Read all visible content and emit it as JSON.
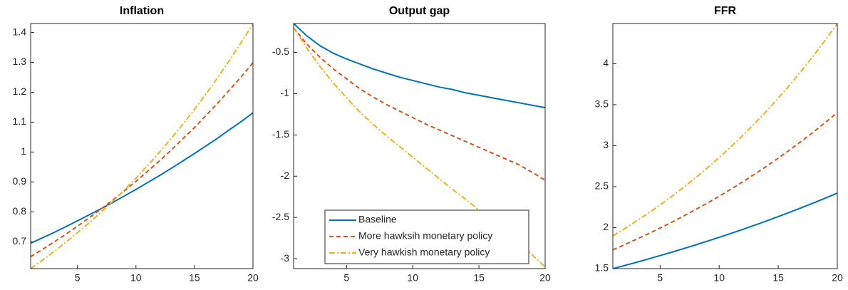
{
  "chart_data": [
    {
      "type": "line",
      "title": "Inflation",
      "x": [
        1,
        2,
        3,
        4,
        5,
        6,
        7,
        8,
        9,
        10,
        11,
        12,
        13,
        14,
        15,
        16,
        17,
        18,
        19,
        20
      ],
      "xlim": [
        1,
        20
      ],
      "xticks": [
        5,
        10,
        15,
        20
      ],
      "ylim": [
        0.61,
        1.43
      ],
      "yticks": [
        0.7,
        0.8,
        0.9,
        1,
        1.1,
        1.2,
        1.3,
        1.4
      ],
      "series": [
        {
          "color": "#0072BD",
          "style": "solid",
          "values": [
            0.695,
            0.713,
            0.731,
            0.75,
            0.77,
            0.79,
            0.81,
            0.831,
            0.853,
            0.875,
            0.898,
            0.921,
            0.945,
            0.97,
            0.995,
            1.021,
            1.047,
            1.075,
            1.102,
            1.131
          ]
        },
        {
          "color": "#D95319",
          "style": "dashed",
          "values": [
            0.65,
            0.674,
            0.699,
            0.725,
            0.752,
            0.78,
            0.809,
            0.839,
            0.87,
            0.902,
            0.936,
            0.97,
            1.006,
            1.044,
            1.082,
            1.123,
            1.164,
            1.208,
            1.252,
            1.299
          ]
        },
        {
          "color": "#EDB120",
          "style": "dashdot",
          "values": [
            0.61,
            0.638,
            0.667,
            0.698,
            0.73,
            0.763,
            0.798,
            0.835,
            0.873,
            0.913,
            0.955,
            0.999,
            1.045,
            1.093,
            1.143,
            1.195,
            1.25,
            1.307,
            1.367,
            1.428
          ]
        }
      ]
    },
    {
      "type": "line",
      "title": "Output gap",
      "x": [
        1,
        2,
        3,
        4,
        5,
        6,
        7,
        8,
        9,
        10,
        11,
        12,
        13,
        14,
        15,
        16,
        17,
        18,
        19,
        20
      ],
      "xlim": [
        1,
        20
      ],
      "xticks": [
        5,
        10,
        15,
        20
      ],
      "ylim": [
        -3.12,
        -0.15
      ],
      "yticks": [
        -3,
        -2.5,
        -2,
        -1.5,
        -1,
        -0.5
      ],
      "legend": "southwest",
      "series": [
        {
          "name": "Baseline",
          "color": "#0072BD",
          "style": "solid",
          "values": [
            -0.15,
            -0.3,
            -0.42,
            -0.51,
            -0.58,
            -0.64,
            -0.7,
            -0.75,
            -0.8,
            -0.84,
            -0.88,
            -0.92,
            -0.95,
            -0.99,
            -1.02,
            -1.05,
            -1.08,
            -1.11,
            -1.14,
            -1.17
          ]
        },
        {
          "name": "More hawksih monetary policy",
          "color": "#D95319",
          "style": "dashed",
          "values": [
            -0.2,
            -0.4,
            -0.56,
            -0.7,
            -0.82,
            -0.94,
            -1.04,
            -1.13,
            -1.21,
            -1.29,
            -1.37,
            -1.44,
            -1.51,
            -1.58,
            -1.65,
            -1.72,
            -1.79,
            -1.86,
            -1.95,
            -2.05
          ]
        },
        {
          "name": "Very hawkish monetary policy",
          "color": "#EDB120",
          "style": "dashdot",
          "values": [
            -0.2,
            -0.45,
            -0.67,
            -0.87,
            -1.05,
            -1.22,
            -1.37,
            -1.51,
            -1.64,
            -1.77,
            -1.9,
            -2.03,
            -2.16,
            -2.28,
            -2.41,
            -2.54,
            -2.67,
            -2.8,
            -2.95,
            -3.1
          ]
        }
      ]
    },
    {
      "type": "line",
      "title": "FFR",
      "x": [
        1,
        2,
        3,
        4,
        5,
        6,
        7,
        8,
        9,
        10,
        11,
        12,
        13,
        14,
        15,
        16,
        17,
        18,
        19,
        20
      ],
      "xlim": [
        1,
        20
      ],
      "xticks": [
        5,
        10,
        15,
        20
      ],
      "ylim": [
        1.5,
        4.49
      ],
      "yticks": [
        1.5,
        2,
        2.5,
        3,
        3.5,
        4
      ],
      "series": [
        {
          "color": "#0072BD",
          "style": "solid",
          "values": [
            1.5,
            1.538,
            1.577,
            1.618,
            1.659,
            1.701,
            1.745,
            1.789,
            1.835,
            1.882,
            1.93,
            1.979,
            2.03,
            2.081,
            2.135,
            2.189,
            2.245,
            2.302,
            2.361,
            2.421
          ]
        },
        {
          "color": "#D95319",
          "style": "dashed",
          "values": [
            1.73,
            1.793,
            1.858,
            1.925,
            1.995,
            2.067,
            2.142,
            2.22,
            2.3,
            2.383,
            2.47,
            2.559,
            2.652,
            2.748,
            2.848,
            2.951,
            3.058,
            3.169,
            3.284,
            3.403
          ]
        },
        {
          "color": "#EDB120",
          "style": "dashdot",
          "values": [
            1.9,
            1.988,
            2.08,
            2.176,
            2.277,
            2.382,
            2.493,
            2.608,
            2.729,
            2.855,
            2.987,
            3.125,
            3.27,
            3.421,
            3.58,
            3.745,
            3.919,
            4.1,
            4.29,
            4.489
          ]
        }
      ]
    }
  ]
}
